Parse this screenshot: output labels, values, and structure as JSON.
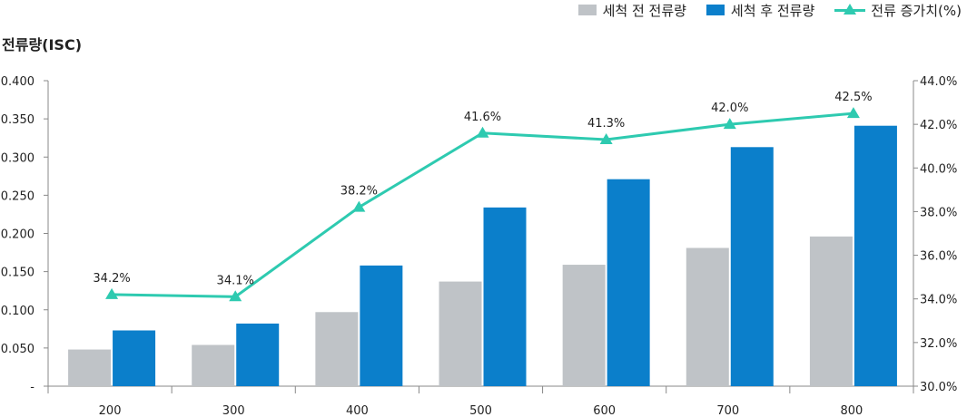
{
  "legend": {
    "before_label": "세척 전 전류량",
    "after_label": "세척 후 전류량",
    "increase_label": "전류 증가치(%)"
  },
  "title": "전류량(ISC)",
  "colors": {
    "before": "#bfc3c7",
    "after": "#0b7fcb",
    "increase": "#2ecab0",
    "axis": "#888888"
  },
  "chart_data": {
    "type": "bar",
    "categories": [
      "200",
      "300",
      "400",
      "500",
      "600",
      "700",
      "800"
    ],
    "series": [
      {
        "name": "세척 전 전류량",
        "values": [
          0.048,
          0.054,
          0.097,
          0.137,
          0.159,
          0.181,
          0.196
        ]
      },
      {
        "name": "세척 후 전류량",
        "values": [
          0.073,
          0.082,
          0.158,
          0.234,
          0.271,
          0.313,
          0.341
        ]
      },
      {
        "name": "전류 증가치(%)",
        "type": "line",
        "axis": "right",
        "values": [
          34.2,
          34.1,
          38.2,
          41.6,
          41.3,
          42.0,
          42.5
        ],
        "labels": [
          "34.2%",
          "34.1%",
          "38.2%",
          "41.6%",
          "41.3%",
          "42.0%",
          "42.5%"
        ]
      }
    ],
    "ylim": [
      0,
      0.4
    ],
    "y_ticks": [
      "-",
      "0.050",
      "0.100",
      "0.150",
      "0.200",
      "0.250",
      "0.300",
      "0.350",
      "0.400"
    ],
    "y2lim": [
      30,
      44
    ],
    "y2_ticks": [
      "30.0%",
      "32.0%",
      "34.0%",
      "36.0%",
      "38.0%",
      "40.0%",
      "42.0%",
      "44.0%"
    ],
    "ylabel": "전류량(ISC)",
    "xlabel": "",
    "grid": false,
    "legend_position": "top-right"
  }
}
